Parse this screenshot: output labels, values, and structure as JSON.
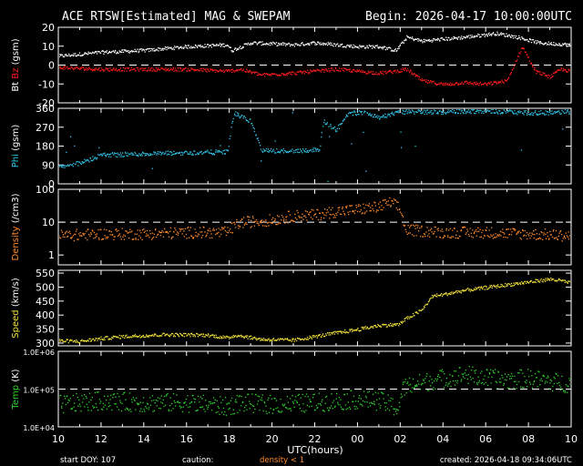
{
  "header": {
    "title": "ACE RTSW[Estimated] MAG & SWEPAM",
    "begin": "Begin: 2026-04-17 10:00:00UTC"
  },
  "footer": {
    "start_doy": "start DOY: 107",
    "caution": "caution:",
    "density_note": "density < 1",
    "created": "created: 2026-04-18 09:34:06UTC"
  },
  "colors": {
    "bt": "#ffffff",
    "bz": "#ff1c1c",
    "phi": "#2fc4e8",
    "density": "#ff8a2a",
    "speed": "#f2e23a",
    "temp": "#2ed22e"
  },
  "chart_data": {
    "type": "scatter",
    "xlabel": "UTC(hours)",
    "x_range_hours": [
      10,
      34
    ],
    "x_ticks": [
      "10",
      "12",
      "14",
      "16",
      "18",
      "20",
      "22",
      "00",
      "02",
      "04",
      "06",
      "08",
      "10"
    ],
    "panels": [
      {
        "id": "mag",
        "ylabel_parts": [
          "Bt",
          "Bz",
          "(gsm)"
        ],
        "ylim": [
          -20,
          20
        ],
        "y_ticks": [
          "20",
          "10",
          "0",
          "-10",
          "-20"
        ],
        "y_tick_values": [
          20,
          10,
          0,
          -10,
          -20
        ],
        "dash_line": 0,
        "series": [
          {
            "name": "Bt",
            "color_key": "bt",
            "keypoints": [
              [
                10,
                5
              ],
              [
                12,
                7
              ],
              [
                14,
                8
              ],
              [
                16,
                10
              ],
              [
                17.9,
                11
              ],
              [
                18.1,
                8
              ],
              [
                19,
                12
              ],
              [
                21,
                11
              ],
              [
                22,
                12
              ],
              [
                23,
                11
              ],
              [
                24,
                10
              ],
              [
                25,
                10
              ],
              [
                25.8,
                8
              ],
              [
                26.3,
                15
              ],
              [
                27,
                13
              ],
              [
                28,
                14
              ],
              [
                29,
                15
              ],
              [
                30.5,
                17
              ],
              [
                31.5,
                15
              ],
              [
                32.5,
                12
              ],
              [
                34,
                11
              ]
            ]
          },
          {
            "name": "Bz",
            "color_key": "bz",
            "keypoints": [
              [
                10,
                -1
              ],
              [
                12,
                -2
              ],
              [
                14,
                -2
              ],
              [
                16,
                -2
              ],
              [
                17.9,
                -3
              ],
              [
                18.5,
                -2
              ],
              [
                19.5,
                -5
              ],
              [
                21,
                -4
              ],
              [
                22,
                -3
              ],
              [
                23,
                -2
              ],
              [
                24,
                -3
              ],
              [
                25,
                -4
              ],
              [
                25.8,
                -3
              ],
              [
                26.3,
                -2
              ],
              [
                27,
                -8
              ],
              [
                28,
                -10
              ],
              [
                29,
                -9
              ],
              [
                30,
                -10
              ],
              [
                31,
                -8
              ],
              [
                31.7,
                10
              ],
              [
                32.3,
                -3
              ],
              [
                33,
                -6
              ],
              [
                33.5,
                -2
              ],
              [
                34,
                -3
              ]
            ]
          }
        ]
      },
      {
        "id": "phi",
        "ylabel_parts": [
          "Phi",
          "(gsm)"
        ],
        "ylim": [
          0,
          360
        ],
        "y_ticks": [
          "360",
          "270",
          "180",
          "90",
          "0"
        ],
        "y_tick_values": [
          360,
          270,
          180,
          90,
          0
        ],
        "series": [
          {
            "name": "Phi",
            "color_key": "phi",
            "keypoints": [
              [
                10,
                85
              ],
              [
                11,
                100
              ],
              [
                12,
                140
              ],
              [
                14,
                145
              ],
              [
                16,
                150
              ],
              [
                17.9,
                155
              ],
              [
                18.2,
                340
              ],
              [
                19,
                300
              ],
              [
                19.5,
                160
              ],
              [
                21,
                160
              ],
              [
                22.2,
                165
              ],
              [
                22.4,
                300
              ],
              [
                23,
                260
              ],
              [
                23.6,
                340
              ],
              [
                24.5,
                340
              ],
              [
                25,
                320
              ],
              [
                26,
                345
              ],
              [
                28,
                345
              ],
              [
                30,
                350
              ],
              [
                32,
                340
              ],
              [
                34,
                345
              ]
            ]
          }
        ]
      },
      {
        "id": "density",
        "ylabel_parts": [
          "Density",
          "(/cm3)"
        ],
        "scale": "log",
        "ylim": [
          0.5,
          100
        ],
        "y_ticks": [
          "100",
          "10",
          "1"
        ],
        "y_tick_values": [
          100,
          10,
          1
        ],
        "dash_line": 10,
        "series": [
          {
            "name": "Density",
            "color_key": "density",
            "keypoints": [
              [
                10,
                4
              ],
              [
                12,
                4.5
              ],
              [
                14,
                4.5
              ],
              [
                16,
                5
              ],
              [
                17.9,
                5
              ],
              [
                18.5,
                10
              ],
              [
                20,
                12
              ],
              [
                21,
                16
              ],
              [
                22,
                17
              ],
              [
                23,
                22
              ],
              [
                24,
                25
              ],
              [
                25,
                30
              ],
              [
                25.5,
                40
              ],
              [
                25.9,
                30
              ],
              [
                26.2,
                6
              ],
              [
                28,
                5
              ],
              [
                30,
                5
              ],
              [
                32,
                4.5
              ],
              [
                34,
                4
              ]
            ]
          }
        ]
      },
      {
        "id": "speed",
        "ylabel_parts": [
          "Speed",
          "(km/s)"
        ],
        "ylim": [
          290,
          560
        ],
        "y_ticks": [
          "550",
          "500",
          "450",
          "400",
          "350",
          "300"
        ],
        "y_tick_values": [
          550,
          500,
          450,
          400,
          350,
          300
        ],
        "series": [
          {
            "name": "Speed",
            "color_key": "speed",
            "keypoints": [
              [
                10,
                310
              ],
              [
                11,
                308
              ],
              [
                12,
                318
              ],
              [
                13,
                325
              ],
              [
                15,
                332
              ],
              [
                17,
                330
              ],
              [
                17.9,
                320
              ],
              [
                18.3,
                330
              ],
              [
                19.5,
                315
              ],
              [
                21,
                312
              ],
              [
                22,
                325
              ],
              [
                23,
                338
              ],
              [
                24,
                350
              ],
              [
                25,
                365
              ],
              [
                25.9,
                368
              ],
              [
                26.3,
                390
              ],
              [
                27,
                420
              ],
              [
                27.5,
                470
              ],
              [
                28,
                475
              ],
              [
                29,
                490
              ],
              [
                30,
                500
              ],
              [
                31,
                510
              ],
              [
                32,
                520
              ],
              [
                33,
                530
              ],
              [
                33.5,
                525
              ],
              [
                34,
                515
              ]
            ]
          }
        ]
      },
      {
        "id": "temp",
        "ylabel_parts": [
          "Temp",
          "(K)"
        ],
        "scale": "log",
        "ylim": [
          10000,
          1000000
        ],
        "y_ticks": [
          "1.0E+06",
          "1.0E+05",
          "1.0E+04"
        ],
        "y_tick_values": [
          1000000,
          100000,
          10000
        ],
        "dash_line": 100000,
        "series": [
          {
            "name": "Temp",
            "color_key": "temp",
            "keypoints": [
              [
                10,
                40000
              ],
              [
                12,
                50000
              ],
              [
                14,
                45000
              ],
              [
                16,
                45000
              ],
              [
                17.9,
                35000
              ],
              [
                18.5,
                45000
              ],
              [
                20,
                40000
              ],
              [
                22,
                45000
              ],
              [
                23,
                50000
              ],
              [
                24,
                55000
              ],
              [
                25,
                50000
              ],
              [
                25.9,
                30000
              ],
              [
                26.2,
                120000
              ],
              [
                27,
                150000
              ],
              [
                28,
                200000
              ],
              [
                29,
                250000
              ],
              [
                30,
                200000
              ],
              [
                31,
                180000
              ],
              [
                32,
                200000
              ],
              [
                33,
                160000
              ],
              [
                34,
                140000
              ]
            ]
          }
        ]
      }
    ]
  }
}
